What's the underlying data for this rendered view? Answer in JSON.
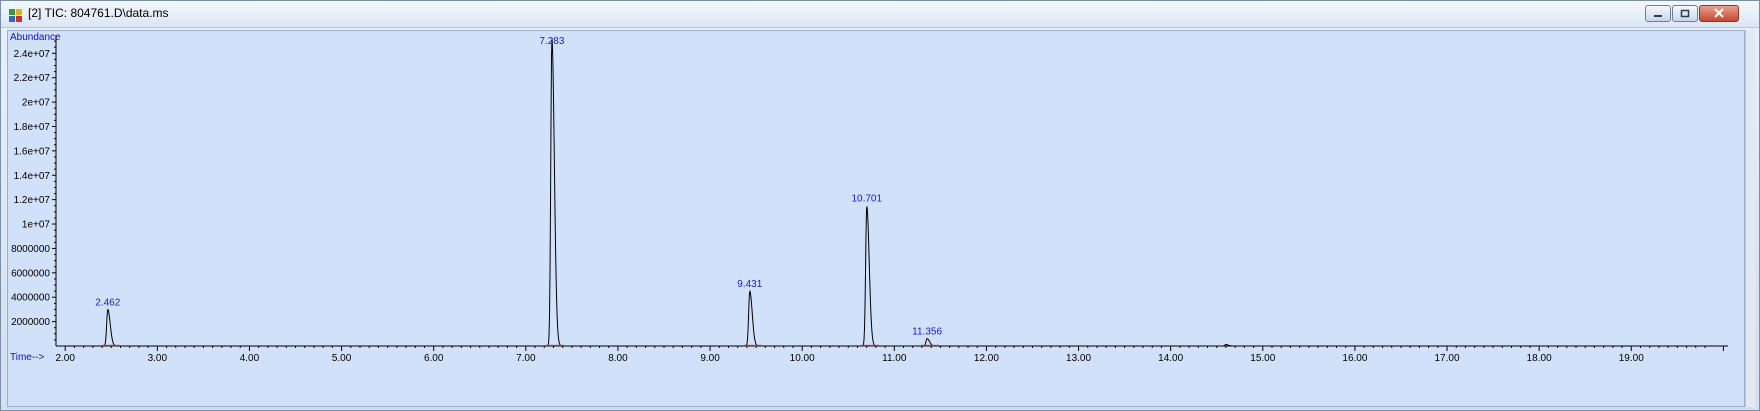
{
  "window": {
    "title": "[2] TIC: 804761.D\\data.ms",
    "icon": "chromatogram-app-icon"
  },
  "colors": {
    "background": "#d1e1f9",
    "trace": "#000000",
    "axis_labels": "#1010c0",
    "peak_labels": "#1a1ad0",
    "baseline": "#d02020"
  },
  "chart_data": {
    "type": "line",
    "title": "",
    "xlabel": "Time-->",
    "ylabel": "Abundance",
    "xlim": [
      1.9,
      20.05
    ],
    "ylim": [
      0,
      25500000
    ],
    "x_ticks": [
      2,
      3,
      4,
      5,
      6,
      7,
      8,
      9,
      10,
      11,
      12,
      13,
      14,
      15,
      16,
      17,
      18,
      19
    ],
    "x_tick_labels": [
      "2.00",
      "3.00",
      "4.00",
      "5.00",
      "6.00",
      "7.00",
      "8.00",
      "9.00",
      "10.00",
      "11.00",
      "12.00",
      "13.00",
      "14.00",
      "15.00",
      "16.00",
      "17.00",
      "18.00",
      "19.00"
    ],
    "y_ticks": [
      2000000,
      4000000,
      6000000,
      8000000,
      10000000,
      12000000,
      14000000,
      16000000,
      18000000,
      20000000,
      22000000,
      24000000
    ],
    "y_tick_labels": [
      "2000000",
      "4000000",
      "6000000",
      "8000000",
      "1e+07",
      "1.2e+07",
      "1.4e+07",
      "1.6e+07",
      "1.8e+07",
      "2e+07",
      "2.2e+07",
      "2.4e+07"
    ],
    "peaks": [
      {
        "rt": 2.462,
        "label": "2.462",
        "height": 3000000
      },
      {
        "rt": 7.283,
        "label": "7.283",
        "height": 25300000
      },
      {
        "rt": 9.431,
        "label": "9.431",
        "height": 4500000
      },
      {
        "rt": 10.701,
        "label": "10.701",
        "height": 11500000
      },
      {
        "rt": 11.356,
        "label": "11.356",
        "height": 600000
      }
    ],
    "minor_peaks": [
      {
        "rt": 14.6,
        "height": 120000
      }
    ],
    "grid": false,
    "legend": "none"
  }
}
